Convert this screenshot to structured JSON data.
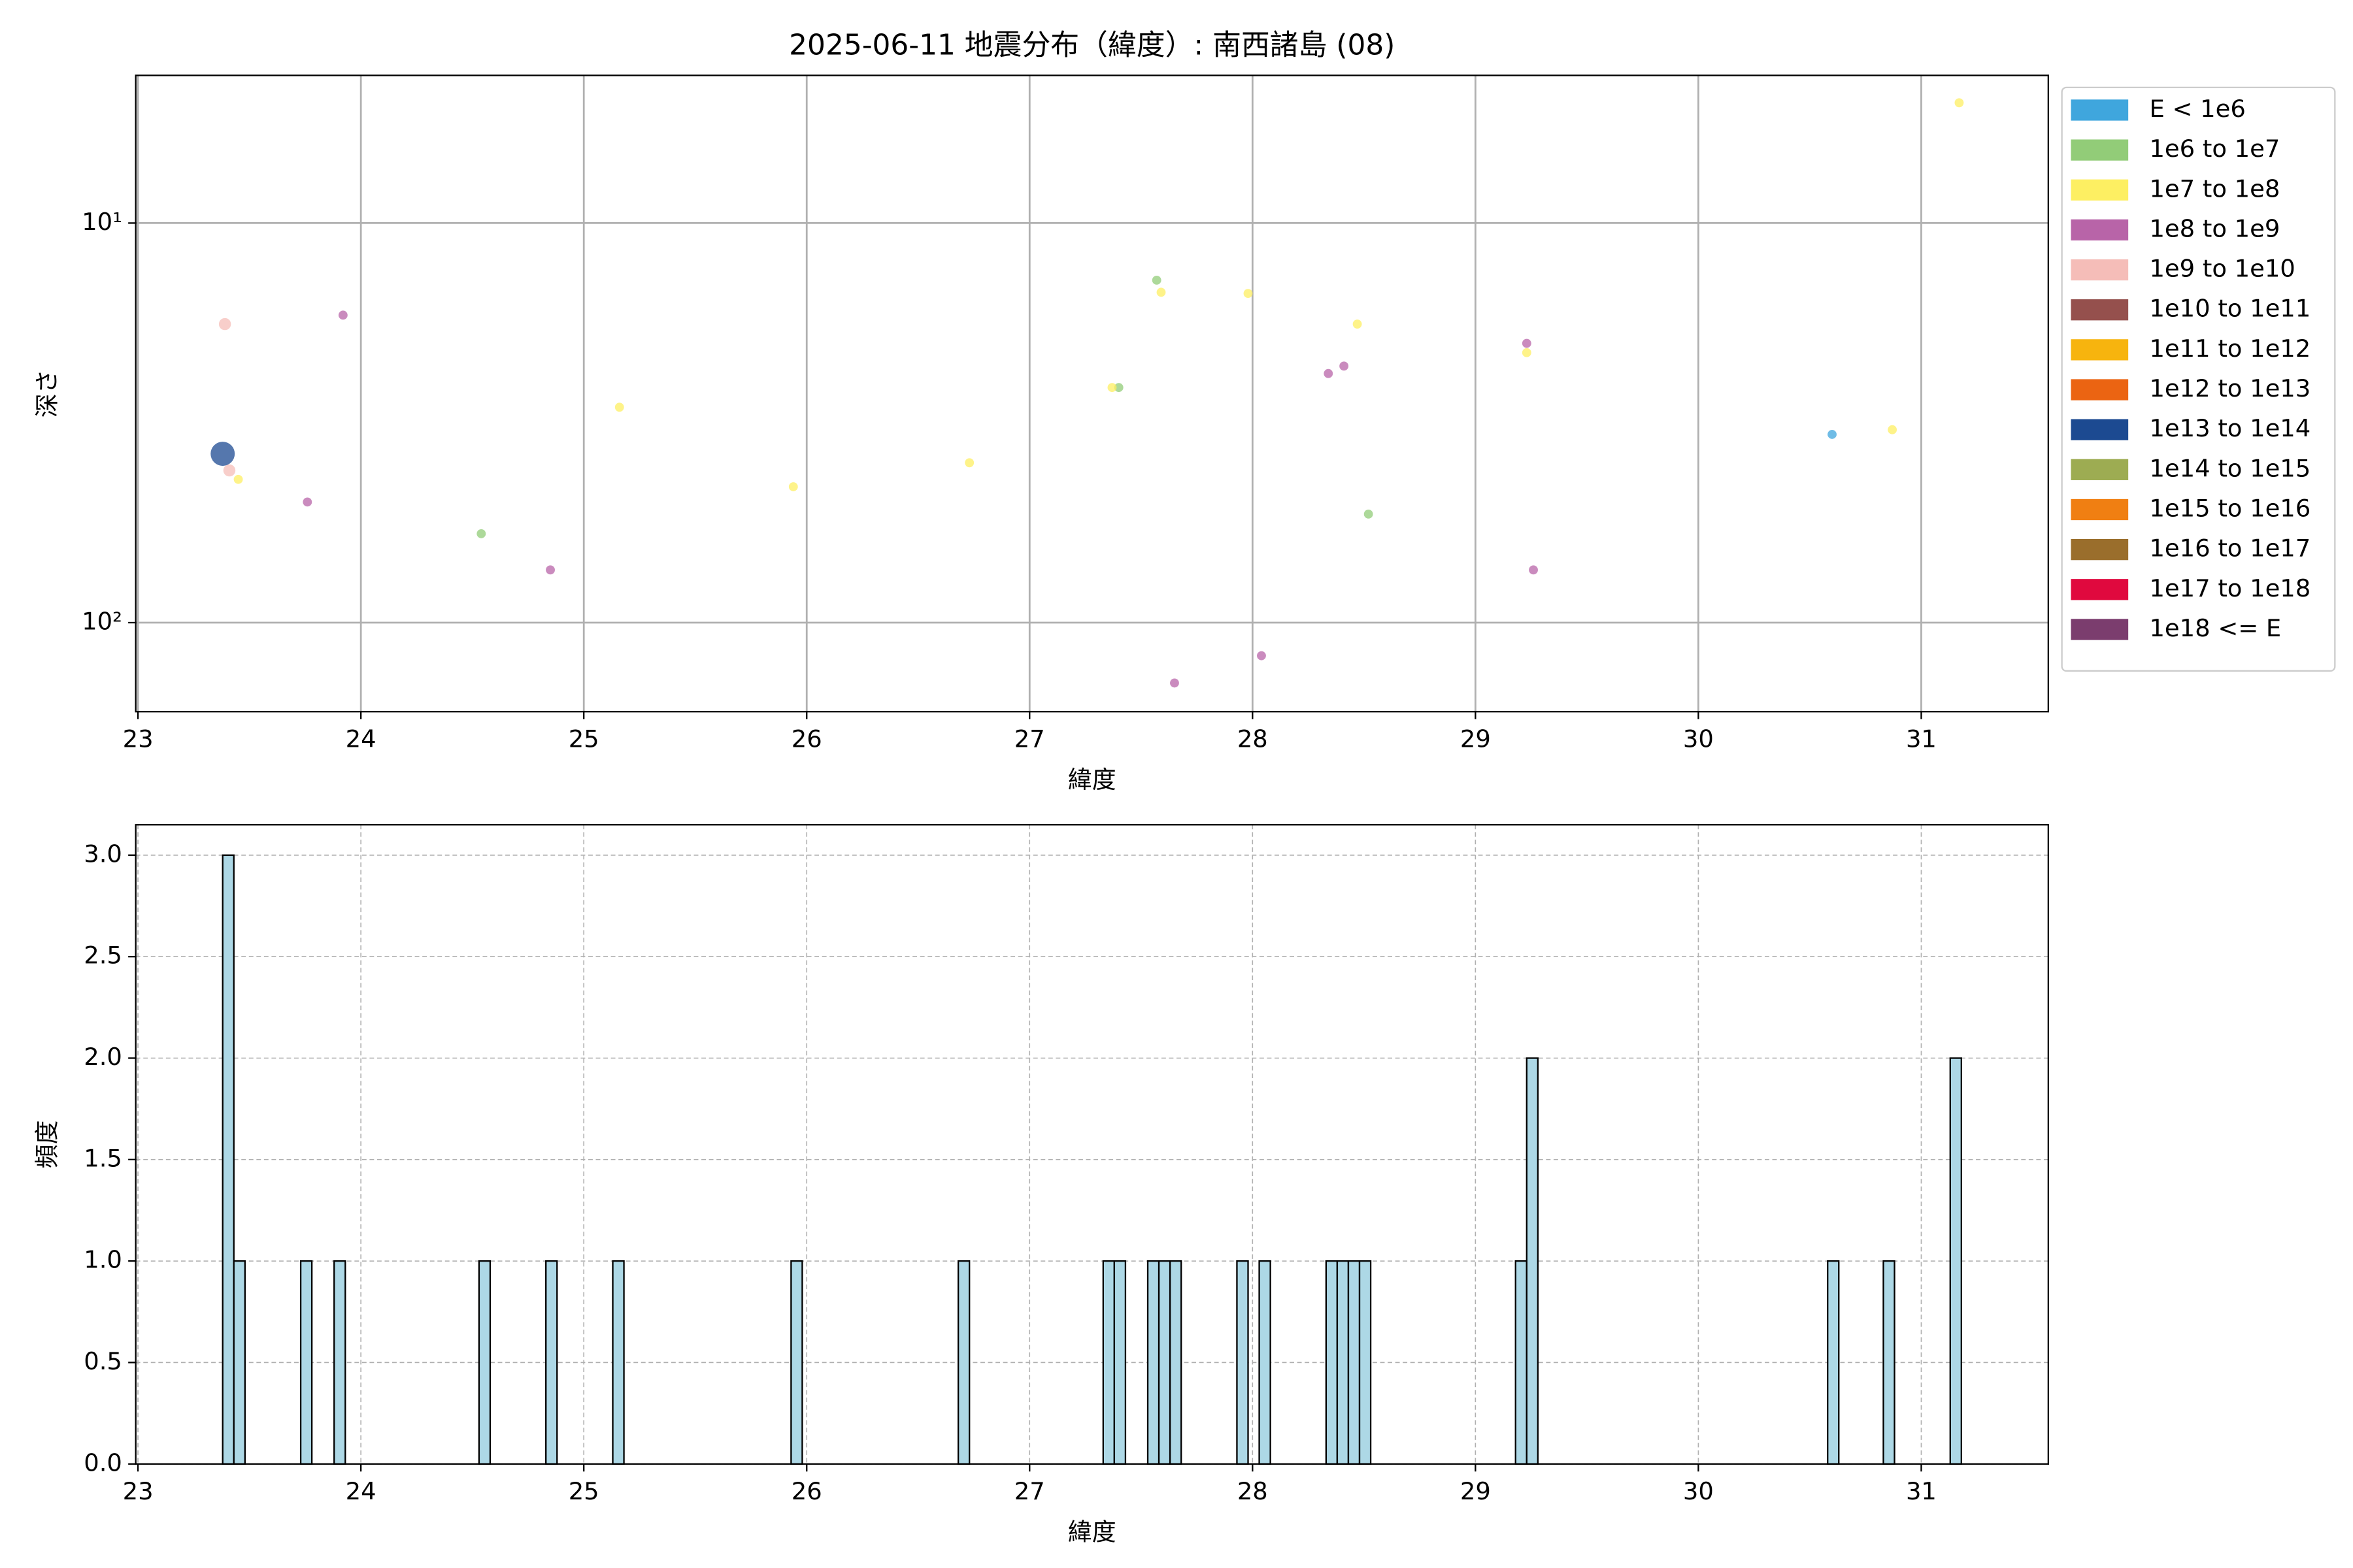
{
  "chart_data": [
    {
      "type": "scatter",
      "title": "2025-06-11 地震分布（緯度）: 南西諸島 (08)",
      "x_label": "緯度",
      "y_label": "深さ",
      "xlim": [
        22.99,
        31.57
      ],
      "xticks": [
        23,
        24,
        25,
        26,
        27,
        28,
        29,
        30,
        31
      ],
      "ylim": [
        4.27,
        167
      ],
      "log_y": true,
      "y_inverted": true,
      "yticks": [
        {
          "value": 10,
          "label": "10¹"
        },
        {
          "value": 100,
          "label": "10²"
        }
      ],
      "grid": true,
      "grid_style": "solid",
      "legend": "outside-right",
      "series": [
        {
          "name": "E < 1e6",
          "color": "#3fa6dd",
          "x": [
            30.6
          ],
          "values": [
            33.8
          ]
        },
        {
          "name": "1e6 to 1e7",
          "color": "#92cc78",
          "x": [
            24.54,
            27.4,
            27.57,
            28.52
          ],
          "values": [
            59.9,
            25.8,
            13.9,
            53.5
          ]
        },
        {
          "name": "1e7 to 1e8",
          "color": "#fdef62",
          "x": [
            23.45,
            25.16,
            25.94,
            26.73,
            27.37,
            27.59,
            27.98,
            28.47,
            29.23,
            30.87,
            31.17
          ],
          "values": [
            43.8,
            28.9,
            45.7,
            39.8,
            25.8,
            14.9,
            15.0,
            17.9,
            21.1,
            32.9,
            5.0
          ]
        },
        {
          "name": "1e8 to 1e9",
          "color": "#b864a8",
          "x": [
            23.76,
            23.92,
            24.85,
            27.65,
            28.04,
            28.34,
            28.41,
            29.23,
            29.26
          ],
          "values": [
            49.9,
            17.0,
            73.8,
            141.6,
            121,
            23.8,
            22.8,
            20.0,
            73.8
          ]
        },
        {
          "name": "1e9 to 1e10",
          "color": "#f5bdb8",
          "x": [
            23.39,
            23.41
          ],
          "values": [
            17.9,
            41.6
          ]
        },
        {
          "name": "1e10 to 1e11",
          "color": "#95504d",
          "x": [],
          "values": []
        },
        {
          "name": "1e11 to 1e12",
          "color": "#f7b40e",
          "x": [],
          "values": []
        },
        {
          "name": "1e12 to 1e13",
          "color": "#eb6412",
          "x": [],
          "values": []
        },
        {
          "name": "1e13 to 1e14",
          "color": "#1c4a91",
          "x": [
            23.38
          ],
          "values": [
            37.8
          ]
        },
        {
          "name": "1e14 to 1e15",
          "color": "#9dac52",
          "x": [],
          "values": []
        },
        {
          "name": "1e15 to 1e16",
          "color": "#f07f12",
          "x": [],
          "values": []
        },
        {
          "name": "1e16 to 1e17",
          "color": "#9a6e2c",
          "x": [],
          "values": []
        },
        {
          "name": "1e17 to 1e18",
          "color": "#e0093e",
          "x": [],
          "values": []
        },
        {
          "name": "1e18 <= E",
          "color": "#7b3d6e",
          "x": [],
          "values": []
        }
      ]
    },
    {
      "type": "histogram",
      "x_label": "緯度",
      "y_label": "頻度",
      "xlim": [
        22.99,
        31.57
      ],
      "xticks": [
        23,
        24,
        25,
        26,
        27,
        28,
        29,
        30,
        31
      ],
      "ylim": [
        0,
        3.15
      ],
      "yticks": [
        {
          "value": 0,
          "label": "0.0"
        },
        0.5,
        {
          "value": 1,
          "label": "1.0"
        },
        1.5,
        {
          "value": 2,
          "label": "2.0"
        },
        2.5,
        {
          "value": 3,
          "label": "3.0"
        }
      ],
      "grid": true,
      "grid_style": "dashed",
      "color": "#add8e6",
      "edge_color": "#000000",
      "bins": [
        23.38,
        23.43,
        23.48,
        23.53,
        23.58,
        23.63,
        23.68,
        23.73,
        23.78,
        23.83,
        23.88,
        23.93,
        23.98,
        24.03,
        24.08,
        24.13,
        24.18,
        24.23,
        24.28,
        24.33,
        24.38,
        24.43,
        24.48,
        24.53,
        24.58,
        24.63,
        24.68,
        24.73,
        24.78,
        24.83,
        24.88,
        24.93,
        24.98,
        25.03,
        25.08,
        25.13,
        25.18,
        25.23,
        25.28,
        25.33,
        25.38,
        25.43,
        25.48,
        25.53,
        25.58,
        25.63,
        25.68,
        25.73,
        25.78,
        25.83,
        25.88,
        25.93,
        25.98,
        26.03,
        26.08,
        26.13,
        26.18,
        26.23,
        26.28,
        26.33,
        26.38,
        26.43,
        26.48,
        26.53,
        26.58,
        26.63,
        26.68,
        26.73,
        26.78,
        26.83,
        26.88,
        26.93,
        26.98,
        27.03,
        27.08,
        27.13,
        27.18,
        27.23,
        27.28,
        27.33,
        27.38,
        27.43,
        27.48,
        27.53,
        27.58,
        27.63,
        27.68,
        27.73,
        27.78,
        27.83,
        27.88,
        27.93,
        27.98,
        28.03,
        28.08,
        28.13,
        28.18,
        28.23,
        28.28,
        28.33,
        28.38,
        28.43,
        28.48,
        28.53,
        28.58,
        28.63,
        28.68,
        28.73,
        28.78,
        28.83,
        28.88,
        28.93,
        28.98,
        29.03,
        29.08,
        29.13,
        29.18,
        29.23,
        29.28,
        29.33,
        29.38,
        29.43,
        29.48,
        29.53,
        29.58,
        29.63,
        29.68,
        29.73,
        29.78,
        29.83,
        29.88,
        29.93,
        29.98,
        30.03,
        30.08,
        30.13,
        30.18,
        30.23,
        30.28,
        30.33,
        30.38,
        30.43,
        30.48,
        30.53,
        30.58,
        30.63,
        30.68,
        30.73,
        30.78,
        30.83,
        30.88,
        30.93,
        30.98,
        31.03,
        31.08,
        31.13,
        31.18
      ],
      "values": [
        3,
        1,
        0,
        0,
        0,
        0,
        0,
        1,
        0,
        0,
        1,
        0,
        0,
        0,
        0,
        0,
        0,
        0,
        0,
        0,
        0,
        0,
        0,
        1,
        0,
        0,
        0,
        0,
        0,
        1,
        0,
        0,
        0,
        0,
        0,
        1,
        0,
        0,
        0,
        0,
        0,
        0,
        0,
        0,
        0,
        0,
        0,
        0,
        0,
        0,
        0,
        1,
        0,
        0,
        0,
        0,
        0,
        0,
        0,
        0,
        0,
        0,
        0,
        0,
        0,
        0,
        1,
        0,
        0,
        0,
        0,
        0,
        0,
        0,
        0,
        0,
        0,
        0,
        0,
        1,
        1,
        0,
        0,
        1,
        1,
        1,
        0,
        0,
        0,
        0,
        0,
        1,
        0,
        1,
        0,
        0,
        0,
        0,
        0,
        1,
        1,
        1,
        1,
        0,
        0,
        0,
        0,
        0,
        0,
        0,
        0,
        0,
        0,
        0,
        0,
        0,
        1,
        2,
        0,
        0,
        0,
        0,
        0,
        0,
        0,
        0,
        0,
        0,
        0,
        0,
        0,
        0,
        0,
        0,
        0,
        0,
        0,
        0,
        0,
        0,
        0,
        0,
        0,
        0,
        1,
        0,
        0,
        0,
        0,
        1,
        0,
        0,
        0,
        0,
        0,
        2
      ]
    }
  ]
}
